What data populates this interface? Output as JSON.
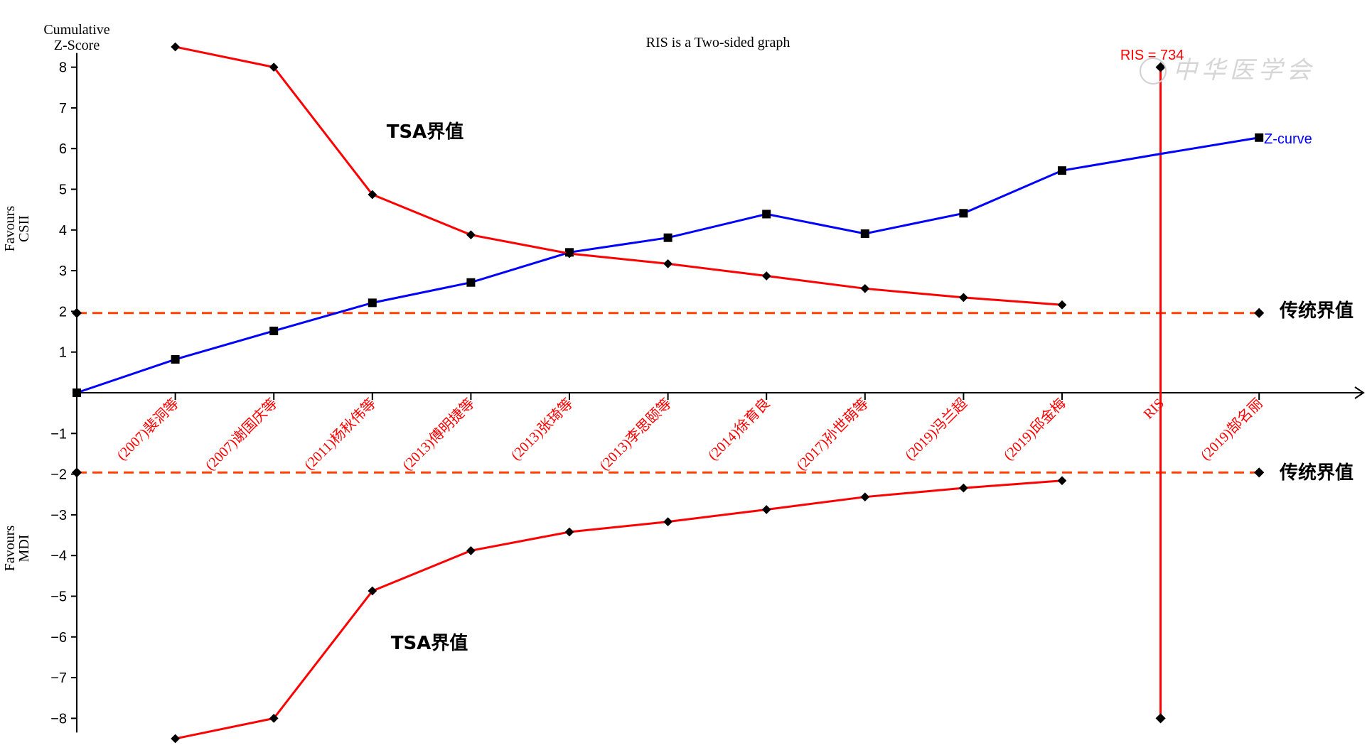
{
  "chart_data": {
    "type": "line",
    "title": "RIS is a Two-sided graph",
    "ylabel": "Cumulative Z-Score",
    "upper_side_label": "Favours CSII",
    "lower_side_label": "Favours MDI",
    "ylim": [
      -8,
      8
    ],
    "yticks": [
      8,
      7,
      6,
      5,
      4,
      3,
      2,
      1,
      -1,
      -2,
      -3,
      -4,
      -5,
      -6,
      -7,
      -8
    ],
    "categories": [
      "(2007)裴洞等",
      "(2007)谢国庆等",
      "(2011)杨秋伟等",
      "(2013)傅明捷等",
      "(2013)张琦等",
      "(2013)李思颐等",
      "(2014)徐育良",
      "(2017)孙世萌等",
      "(2019)冯兰超",
      "(2019)邱金梅",
      "RIS",
      "(2019)郜名丽"
    ],
    "series": [
      {
        "name": "Z-curve",
        "color": "#0000ff",
        "marker": "square",
        "x": [
          0,
          1,
          2,
          3,
          4,
          5,
          6,
          7,
          8,
          9,
          10,
          11,
          12
        ],
        "y": [
          0,
          0.82,
          1.52,
          2.21,
          2.71,
          3.45,
          3.81,
          4.39,
          3.91,
          4.41,
          5.46,
          5.87,
          6.27
        ]
      },
      {
        "name": "TSA界值",
        "color": "#ff0000",
        "marker": "diamond",
        "x": [
          1,
          2,
          3,
          4,
          5,
          6,
          7,
          8,
          9,
          10
        ],
        "y": [
          8.5,
          8.0,
          4.87,
          3.88,
          3.42,
          3.17,
          2.87,
          2.56,
          2.34,
          2.16
        ]
      },
      {
        "name": "TSA界值",
        "color": "#ff0000",
        "marker": "diamond",
        "x": [
          1,
          2,
          3,
          4,
          5,
          6,
          7,
          8,
          9,
          10
        ],
        "y": [
          -8.5,
          -8.0,
          -4.87,
          -3.88,
          -3.42,
          -3.17,
          -2.87,
          -2.56,
          -2.34,
          -2.16
        ]
      }
    ],
    "conventional_boundaries": {
      "label": "传统界值",
      "color": "#ff4000",
      "values": [
        1.96,
        -1.96
      ]
    },
    "ris": {
      "label": "RIS = 734",
      "color": "#ff0000",
      "x": 11,
      "ymin": -8,
      "ymax": 8
    },
    "annotations": {
      "tsa_upper": "TSA界值",
      "tsa_lower": "TSA界值",
      "z_curve": "Z-curve",
      "conv_upper": "传统界值",
      "conv_lower": "传统界值"
    },
    "watermark": "中华医学会"
  }
}
